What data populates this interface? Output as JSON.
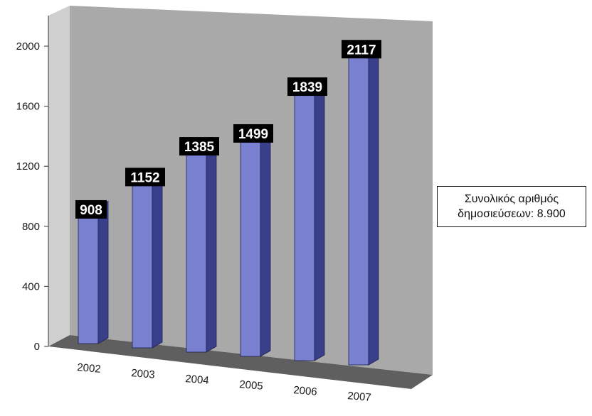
{
  "chart_data": {
    "type": "bar",
    "title": "",
    "xlabel": "",
    "ylabel": "",
    "categories": [
      "2002",
      "2003",
      "2004",
      "2005",
      "2006",
      "2007"
    ],
    "values": [
      908,
      1152,
      1385,
      1499,
      1839,
      2117
    ],
    "data_labels": [
      "908",
      "1152",
      "1385",
      "1499",
      "1839",
      "2117"
    ],
    "ylim": [
      0,
      2000
    ],
    "yticks": [
      "0",
      "400",
      "800",
      "1200",
      "1600",
      "2000"
    ],
    "ytick_values": [
      0,
      400,
      800,
      1200,
      1600,
      2000
    ],
    "grid": false,
    "style": "3d-column",
    "colors": {
      "bar_front": "#7a80d0",
      "bar_side": "#3a3f8a",
      "bar_top": "#a9aee8",
      "back_wall": "#a9a9a9",
      "floor": "#5f5f5f",
      "label_bg": "#000000"
    }
  },
  "annotation": {
    "line1": "Συνολικός αριθμός",
    "line2": "δημοσιεύσεων: 8.900"
  }
}
